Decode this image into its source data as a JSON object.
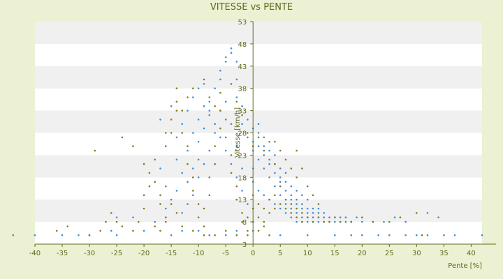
{
  "chart_data": {
    "type": "scatter",
    "title": "VITESSE vs PENTE",
    "xlabel": "Pente [%]",
    "ylabel": "Vitesse [km/h]",
    "xlim": [
      -40,
      42
    ],
    "ylim": [
      3,
      53
    ],
    "xticks": [
      -40,
      -35,
      -30,
      -25,
      -20,
      -15,
      -10,
      -5,
      0,
      5,
      10,
      15,
      20,
      25,
      30,
      35,
      40
    ],
    "yticks": [
      3,
      8,
      13,
      18,
      23,
      28,
      33,
      38,
      43,
      48,
      53
    ],
    "grid": "horizontal-bands",
    "legend": "none",
    "colors": {
      "series_a": "#3d8fd6",
      "series_b": "#7e7f1e",
      "text": "#5f6a1f",
      "background": "#ebf1d2",
      "band_light": "#ffffff",
      "band_dark": "#f0f0f0"
    },
    "series": [
      {
        "color": "#3d8fd6",
        "points": [
          [
            -44,
            5
          ],
          [
            -40,
            5
          ],
          [
            -35,
            5
          ],
          [
            -32,
            5
          ],
          [
            -30,
            5
          ],
          [
            -26,
            6
          ],
          [
            -25,
            5
          ],
          [
            -20,
            6
          ],
          [
            -15,
            5
          ],
          [
            -13,
            6
          ],
          [
            -10,
            6
          ],
          [
            -8,
            5
          ],
          [
            -5,
            5
          ],
          [
            -3,
            6
          ],
          [
            0,
            6
          ],
          [
            5,
            5
          ],
          [
            10,
            5
          ],
          [
            15,
            5
          ],
          [
            18,
            5
          ],
          [
            20,
            5
          ],
          [
            23,
            5
          ],
          [
            25,
            5
          ],
          [
            28,
            5
          ],
          [
            30,
            5
          ],
          [
            32,
            5
          ],
          [
            35,
            5
          ],
          [
            37,
            5
          ],
          [
            42,
            5
          ],
          [
            -25,
            9
          ],
          [
            -22,
            9
          ],
          [
            -18,
            8
          ],
          [
            -16,
            11
          ],
          [
            -15,
            13
          ],
          [
            -14,
            15
          ],
          [
            -12,
            17
          ],
          [
            -11,
            20
          ],
          [
            -10,
            22
          ],
          [
            -10,
            26
          ],
          [
            -9,
            29
          ],
          [
            -8,
            32
          ],
          [
            -8,
            35
          ],
          [
            -7,
            38
          ],
          [
            -6,
            40
          ],
          [
            -6,
            42
          ],
          [
            -5,
            44
          ],
          [
            -5,
            45
          ],
          [
            -4,
            46
          ],
          [
            -4,
            47
          ],
          [
            -3,
            44
          ],
          [
            -3,
            40
          ],
          [
            -3,
            36
          ],
          [
            -2,
            34
          ],
          [
            -2,
            30
          ],
          [
            -1,
            31
          ],
          [
            -1,
            27
          ],
          [
            0,
            29
          ],
          [
            0,
            26
          ],
          [
            0,
            24
          ],
          [
            1,
            25
          ],
          [
            1,
            22
          ],
          [
            2,
            23
          ],
          [
            2,
            20
          ],
          [
            3,
            21
          ],
          [
            3,
            18
          ],
          [
            4,
            19
          ],
          [
            4,
            16
          ],
          [
            5,
            17
          ],
          [
            5,
            14
          ],
          [
            6,
            15
          ],
          [
            6,
            12
          ],
          [
            7,
            13
          ],
          [
            7,
            11
          ],
          [
            8,
            12
          ],
          [
            8,
            10
          ],
          [
            9,
            11
          ],
          [
            9,
            9
          ],
          [
            10,
            10
          ],
          [
            10,
            8
          ],
          [
            11,
            9
          ],
          [
            12,
            10
          ],
          [
            13,
            8
          ],
          [
            14,
            9
          ],
          [
            15,
            8
          ],
          [
            16,
            9
          ],
          [
            17,
            8
          ],
          [
            18,
            8
          ],
          [
            20,
            8
          ],
          [
            22,
            8
          ],
          [
            24,
            8
          ],
          [
            26,
            9
          ],
          [
            28,
            8
          ],
          [
            32,
            10
          ],
          [
            34,
            9
          ],
          [
            -14,
            27
          ],
          [
            -13,
            30
          ],
          [
            -12,
            33
          ],
          [
            -11,
            36
          ],
          [
            -10,
            38
          ],
          [
            -9,
            39
          ],
          [
            -8,
            33
          ],
          [
            -7,
            30
          ],
          [
            -6,
            27
          ],
          [
            -5,
            24
          ],
          [
            -4,
            21
          ],
          [
            -3,
            18
          ],
          [
            -2,
            15
          ],
          [
            -1,
            12
          ],
          [
            -2,
            20
          ],
          [
            -3,
            25
          ],
          [
            -4,
            30
          ],
          [
            -5,
            35
          ],
          [
            -6,
            33
          ],
          [
            -7,
            28
          ],
          [
            -8,
            24
          ],
          [
            -9,
            21
          ],
          [
            -10,
            18
          ],
          [
            -11,
            14
          ],
          [
            -12,
            12
          ],
          [
            -13,
            10
          ],
          [
            -16,
            16
          ],
          [
            -17,
            20
          ],
          [
            -17,
            31
          ],
          [
            -15,
            34
          ],
          [
            -14,
            22
          ],
          [
            -13,
            19
          ],
          [
            -12,
            24
          ],
          [
            -11,
            28
          ],
          [
            -10,
            31
          ],
          [
            -9,
            34
          ],
          [
            1,
            30
          ],
          [
            1,
            28
          ],
          [
            2,
            27
          ],
          [
            2,
            25
          ],
          [
            3,
            24
          ],
          [
            3,
            22
          ],
          [
            4,
            21
          ],
          [
            4,
            23
          ],
          [
            5,
            20
          ],
          [
            5,
            18
          ],
          [
            6,
            17
          ],
          [
            6,
            19
          ],
          [
            7,
            16
          ],
          [
            7,
            14
          ],
          [
            8,
            15
          ],
          [
            8,
            13
          ],
          [
            9,
            12
          ],
          [
            9,
            14
          ],
          [
            10,
            11
          ],
          [
            10,
            13
          ],
          [
            11,
            11
          ],
          [
            11,
            10
          ],
          [
            12,
            9
          ],
          [
            12,
            11
          ],
          [
            13,
            10
          ],
          [
            13,
            9
          ],
          [
            14,
            8
          ],
          [
            15,
            9
          ],
          [
            16,
            8
          ],
          [
            17,
            9
          ],
          [
            18,
            8
          ],
          [
            19,
            9
          ],
          [
            0,
            20
          ],
          [
            0,
            17
          ],
          [
            1,
            15
          ],
          [
            2,
            14
          ],
          [
            3,
            13
          ],
          [
            4,
            12
          ],
          [
            5,
            11
          ],
          [
            6,
            10
          ],
          [
            7,
            9
          ],
          [
            8,
            8
          ],
          [
            9,
            8
          ],
          [
            10,
            9
          ],
          [
            11,
            8
          ],
          [
            12,
            8
          ]
        ]
      },
      {
        "color": "#7e7f1e",
        "points": [
          [
            -36,
            6
          ],
          [
            -34,
            7
          ],
          [
            -30,
            5
          ],
          [
            -28,
            6
          ],
          [
            -27,
            8
          ],
          [
            -26,
            10
          ],
          [
            -25,
            8
          ],
          [
            -24,
            7
          ],
          [
            -22,
            6
          ],
          [
            -21,
            8
          ],
          [
            -20,
            11
          ],
          [
            -20,
            14
          ],
          [
            -19,
            16
          ],
          [
            -19,
            19
          ],
          [
            -18,
            22
          ],
          [
            -18,
            17
          ],
          [
            -17,
            14
          ],
          [
            -17,
            12
          ],
          [
            -16,
            9
          ],
          [
            -16,
            25
          ],
          [
            -15,
            28
          ],
          [
            -15,
            31
          ],
          [
            -14,
            35
          ],
          [
            -14,
            38
          ],
          [
            -13,
            33
          ],
          [
            -13,
            28
          ],
          [
            -12,
            25
          ],
          [
            -12,
            21
          ],
          [
            -11,
            18
          ],
          [
            -11,
            15
          ],
          [
            -10,
            12
          ],
          [
            -10,
            9
          ],
          [
            -9,
            7
          ],
          [
            -9,
            11
          ],
          [
            -8,
            14
          ],
          [
            -8,
            18
          ],
          [
            -7,
            21
          ],
          [
            -7,
            25
          ],
          [
            -6,
            29
          ],
          [
            -6,
            33
          ],
          [
            -5,
            31
          ],
          [
            -5,
            27
          ],
          [
            -4,
            23
          ],
          [
            -4,
            19
          ],
          [
            -3,
            16
          ],
          [
            -3,
            13
          ],
          [
            -2,
            10
          ],
          [
            -2,
            8
          ],
          [
            -1,
            6
          ],
          [
            -1,
            9
          ],
          [
            0,
            11
          ],
          [
            0,
            14
          ],
          [
            1,
            12
          ],
          [
            1,
            9
          ],
          [
            2,
            8
          ],
          [
            2,
            11
          ],
          [
            3,
            10
          ],
          [
            3,
            13
          ],
          [
            4,
            11
          ],
          [
            4,
            14
          ],
          [
            5,
            12
          ],
          [
            5,
            16
          ],
          [
            6,
            13
          ],
          [
            6,
            11
          ],
          [
            7,
            10
          ],
          [
            7,
            12
          ],
          [
            8,
            9
          ],
          [
            8,
            11
          ],
          [
            9,
            10
          ],
          [
            9,
            8
          ],
          [
            10,
            9
          ],
          [
            11,
            8
          ],
          [
            12,
            9
          ],
          [
            13,
            8
          ],
          [
            14,
            8
          ],
          [
            15,
            9
          ],
          [
            16,
            8
          ],
          [
            18,
            8
          ],
          [
            20,
            9
          ],
          [
            22,
            8
          ],
          [
            25,
            8
          ],
          [
            27,
            9
          ],
          [
            30,
            10
          ],
          [
            31,
            5
          ],
          [
            -29,
            24
          ],
          [
            -24,
            27
          ],
          [
            -22,
            25
          ],
          [
            -20,
            21
          ],
          [
            -16,
            28
          ],
          [
            -14,
            33
          ],
          [
            -12,
            36
          ],
          [
            -11,
            38
          ],
          [
            -9,
            40
          ],
          [
            -8,
            36
          ],
          [
            -7,
            34
          ],
          [
            -6,
            37
          ],
          [
            -4,
            39
          ],
          [
            -3,
            35
          ],
          [
            -2,
            32
          ],
          [
            -1,
            28
          ],
          [
            0,
            25
          ],
          [
            1,
            27
          ],
          [
            2,
            24
          ],
          [
            3,
            26
          ],
          [
            4,
            21
          ],
          [
            4,
            26
          ],
          [
            5,
            24
          ],
          [
            6,
            22
          ],
          [
            7,
            20
          ],
          [
            8,
            24
          ],
          [
            8,
            18
          ],
          [
            9,
            20
          ],
          [
            10,
            16
          ],
          [
            11,
            14
          ],
          [
            12,
            12
          ],
          [
            0,
            8
          ],
          [
            1,
            6
          ],
          [
            2,
            7
          ],
          [
            3,
            5
          ],
          [
            -1,
            5
          ],
          [
            -3,
            5
          ],
          [
            -5,
            6
          ],
          [
            -7,
            5
          ],
          [
            -9,
            5
          ],
          [
            -11,
            6
          ],
          [
            -13,
            7
          ],
          [
            -14,
            10
          ],
          [
            -15,
            12
          ],
          [
            -16,
            8
          ],
          [
            -17,
            6
          ],
          [
            -18,
            7
          ]
        ]
      }
    ]
  }
}
